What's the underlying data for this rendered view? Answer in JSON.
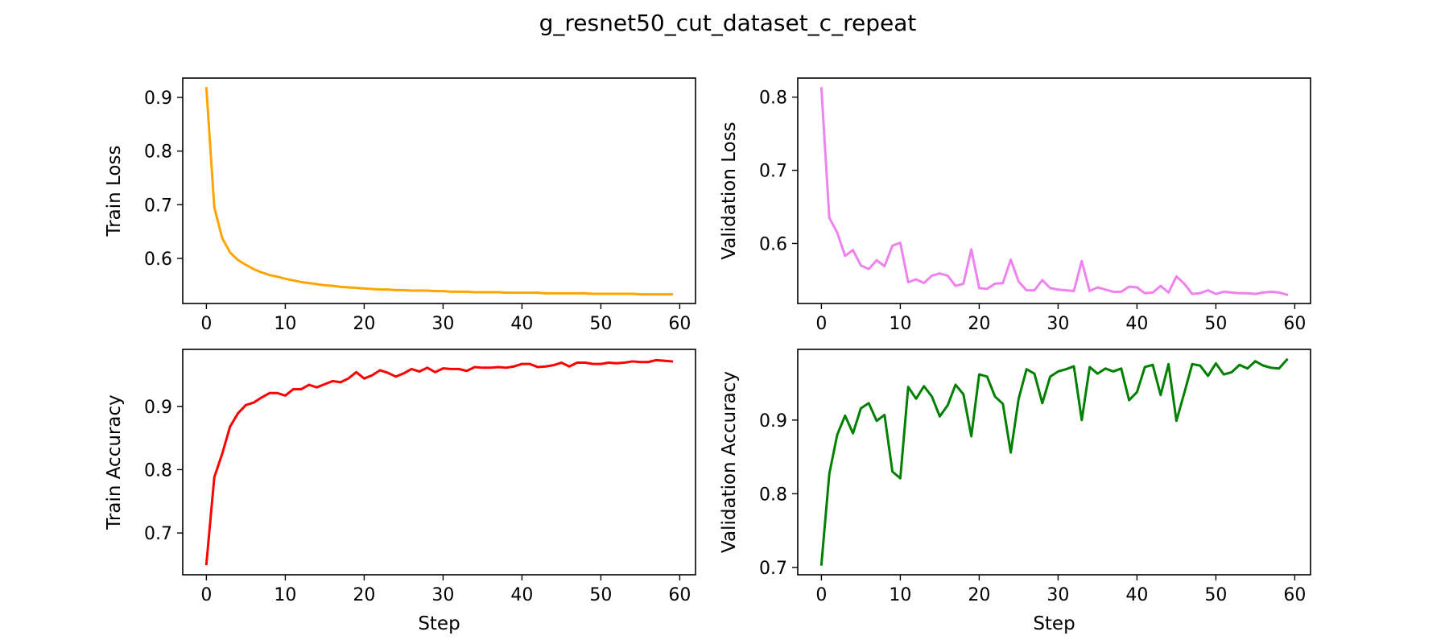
{
  "figure": {
    "title": "g_resnet50_cut_dataset_c_repeat"
  },
  "chart_data": [
    {
      "type": "line",
      "id": "train-loss",
      "title": "",
      "xlabel": "",
      "ylabel": "Train Loss",
      "color": "#FFA500",
      "xlim": [
        -3,
        62
      ],
      "ylim": [
        0.516,
        0.936
      ],
      "xticks": [
        0,
        10,
        20,
        30,
        40,
        50,
        60
      ],
      "yticks": [
        0.6,
        0.7,
        0.8,
        0.9
      ],
      "ytick_labels": [
        "0.6",
        "0.7",
        "0.8",
        "0.9"
      ],
      "grid": false,
      "x": [
        0,
        1,
        2,
        3,
        4,
        5,
        6,
        7,
        8,
        9,
        10,
        11,
        12,
        13,
        14,
        15,
        16,
        17,
        18,
        19,
        20,
        21,
        22,
        23,
        24,
        25,
        26,
        27,
        28,
        29,
        30,
        31,
        32,
        33,
        34,
        35,
        36,
        37,
        38,
        39,
        40,
        41,
        42,
        43,
        44,
        45,
        46,
        47,
        48,
        49,
        50,
        51,
        52,
        53,
        54,
        55,
        56,
        57,
        58,
        59
      ],
      "series": [
        {
          "values": [
            0.917,
            0.695,
            0.638,
            0.611,
            0.597,
            0.588,
            0.58,
            0.574,
            0.569,
            0.566,
            0.562,
            0.559,
            0.556,
            0.554,
            0.552,
            0.55,
            0.549,
            0.547,
            0.546,
            0.545,
            0.544,
            0.543,
            0.542,
            0.542,
            0.541,
            0.541,
            0.54,
            0.54,
            0.54,
            0.539,
            0.539,
            0.538,
            0.538,
            0.538,
            0.537,
            0.537,
            0.537,
            0.537,
            0.536,
            0.536,
            0.536,
            0.536,
            0.536,
            0.535,
            0.535,
            0.535,
            0.535,
            0.535,
            0.535,
            0.534,
            0.534,
            0.534,
            0.534,
            0.534,
            0.534,
            0.533,
            0.533,
            0.533,
            0.533,
            0.533
          ]
        }
      ]
    },
    {
      "type": "line",
      "id": "validation-loss",
      "title": "",
      "xlabel": "",
      "ylabel": "Validation Loss",
      "color": "#EE82EE",
      "xlim": [
        -3,
        62
      ],
      "ylim": [
        0.518,
        0.826
      ],
      "xticks": [
        0,
        10,
        20,
        30,
        40,
        50,
        60
      ],
      "yticks": [
        0.6,
        0.7,
        0.8
      ],
      "ytick_labels": [
        "0.6",
        "0.7",
        "0.8"
      ],
      "grid": false,
      "x": [
        0,
        1,
        2,
        3,
        4,
        5,
        6,
        7,
        8,
        9,
        10,
        11,
        12,
        13,
        14,
        15,
        16,
        17,
        18,
        19,
        20,
        21,
        22,
        23,
        24,
        25,
        26,
        27,
        28,
        29,
        30,
        31,
        32,
        33,
        34,
        35,
        36,
        37,
        38,
        39,
        40,
        41,
        42,
        43,
        44,
        45,
        46,
        47,
        48,
        49,
        50,
        51,
        52,
        53,
        54,
        55,
        56,
        57,
        58,
        59
      ],
      "series": [
        {
          "values": [
            0.812,
            0.635,
            0.615,
            0.583,
            0.591,
            0.57,
            0.565,
            0.577,
            0.569,
            0.597,
            0.601,
            0.547,
            0.551,
            0.546,
            0.556,
            0.559,
            0.556,
            0.542,
            0.545,
            0.592,
            0.539,
            0.538,
            0.545,
            0.546,
            0.578,
            0.548,
            0.536,
            0.536,
            0.55,
            0.539,
            0.537,
            0.536,
            0.535,
            0.576,
            0.535,
            0.54,
            0.537,
            0.534,
            0.534,
            0.541,
            0.54,
            0.532,
            0.533,
            0.542,
            0.533,
            0.555,
            0.545,
            0.531,
            0.532,
            0.536,
            0.531,
            0.534,
            0.533,
            0.532,
            0.532,
            0.531,
            0.533,
            0.534,
            0.533,
            0.53
          ]
        }
      ]
    },
    {
      "type": "line",
      "id": "train-accuracy",
      "title": "",
      "xlabel": "Step",
      "ylabel": "Train Accuracy",
      "color": "#FF0000",
      "xlim": [
        -3,
        62
      ],
      "ylim": [
        0.634,
        0.99
      ],
      "xticks": [
        0,
        10,
        20,
        30,
        40,
        50,
        60
      ],
      "yticks": [
        0.7,
        0.8,
        0.9
      ],
      "ytick_labels": [
        "0.7",
        "0.8",
        "0.9"
      ],
      "grid": false,
      "x": [
        0,
        1,
        2,
        3,
        4,
        5,
        6,
        7,
        8,
        9,
        10,
        11,
        12,
        13,
        14,
        15,
        16,
        17,
        18,
        19,
        20,
        21,
        22,
        23,
        24,
        25,
        26,
        27,
        28,
        29,
        30,
        31,
        32,
        33,
        34,
        35,
        36,
        37,
        38,
        39,
        40,
        41,
        42,
        43,
        44,
        45,
        46,
        47,
        48,
        49,
        50,
        51,
        52,
        53,
        54,
        55,
        56,
        57,
        58,
        59
      ],
      "series": [
        {
          "values": [
            0.651,
            0.788,
            0.825,
            0.868,
            0.889,
            0.902,
            0.906,
            0.914,
            0.921,
            0.921,
            0.917,
            0.927,
            0.927,
            0.934,
            0.93,
            0.935,
            0.94,
            0.938,
            0.944,
            0.954,
            0.944,
            0.949,
            0.957,
            0.953,
            0.947,
            0.952,
            0.959,
            0.955,
            0.961,
            0.954,
            0.96,
            0.959,
            0.959,
            0.956,
            0.962,
            0.961,
            0.961,
            0.962,
            0.961,
            0.963,
            0.967,
            0.967,
            0.962,
            0.963,
            0.965,
            0.969,
            0.963,
            0.969,
            0.969,
            0.967,
            0.967,
            0.969,
            0.968,
            0.969,
            0.971,
            0.97,
            0.97,
            0.973,
            0.972,
            0.971
          ]
        }
      ]
    },
    {
      "type": "line",
      "id": "validation-accuracy",
      "title": "",
      "xlabel": "Step",
      "ylabel": "Validation Accuracy",
      "color": "#008000",
      "xlim": [
        -3,
        62
      ],
      "ylim": [
        0.69,
        0.996
      ],
      "xticks": [
        0,
        10,
        20,
        30,
        40,
        50,
        60
      ],
      "yticks": [
        0.7,
        0.8,
        0.9
      ],
      "ytick_labels": [
        "0.7",
        "0.8",
        "0.9"
      ],
      "grid": false,
      "x": [
        0,
        1,
        2,
        3,
        4,
        5,
        6,
        7,
        8,
        9,
        10,
        11,
        12,
        13,
        14,
        15,
        16,
        17,
        18,
        19,
        20,
        21,
        22,
        23,
        24,
        25,
        26,
        27,
        28,
        29,
        30,
        31,
        32,
        33,
        34,
        35,
        36,
        37,
        38,
        39,
        40,
        41,
        42,
        43,
        44,
        45,
        46,
        47,
        48,
        49,
        50,
        51,
        52,
        53,
        54,
        55,
        56,
        57,
        58,
        59
      ],
      "series": [
        {
          "values": [
            0.704,
            0.827,
            0.88,
            0.906,
            0.882,
            0.916,
            0.923,
            0.899,
            0.907,
            0.83,
            0.821,
            0.945,
            0.929,
            0.946,
            0.932,
            0.905,
            0.92,
            0.948,
            0.935,
            0.878,
            0.962,
            0.959,
            0.932,
            0.922,
            0.856,
            0.929,
            0.969,
            0.963,
            0.923,
            0.959,
            0.966,
            0.969,
            0.973,
            0.9,
            0.972,
            0.963,
            0.97,
            0.966,
            0.97,
            0.927,
            0.938,
            0.972,
            0.975,
            0.934,
            0.976,
            0.899,
            0.937,
            0.976,
            0.974,
            0.96,
            0.977,
            0.962,
            0.965,
            0.975,
            0.97,
            0.98,
            0.974,
            0.971,
            0.97,
            0.982
          ]
        }
      ]
    }
  ]
}
